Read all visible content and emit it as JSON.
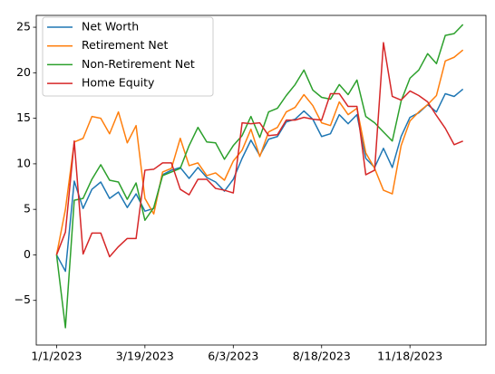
{
  "chart_data": {
    "type": "line",
    "categories": [
      "1/1/2023",
      null,
      null,
      null,
      null,
      null,
      null,
      null,
      null,
      null,
      "3/19/2023",
      null,
      null,
      null,
      null,
      null,
      null,
      null,
      null,
      null,
      "6/3/2023",
      null,
      null,
      null,
      null,
      null,
      null,
      null,
      null,
      null,
      "8/18/2023",
      null,
      null,
      null,
      null,
      null,
      null,
      null,
      null,
      null,
      "11/18/2023",
      null,
      null,
      null,
      null,
      null,
      null
    ],
    "series": [
      {
        "name": "Net Worth",
        "color": "#1f77b4",
        "values": [
          0,
          -1.8,
          8.1,
          5.1,
          7.2,
          8.0,
          6.2,
          6.9,
          5.2,
          6.7,
          4.8,
          5.1,
          8.8,
          9.3,
          9.6,
          8.4,
          9.6,
          8.5,
          8.0,
          7.0,
          8.3,
          10.6,
          12.6,
          10.9,
          12.7,
          13.0,
          14.6,
          14.9,
          15.8,
          14.9,
          13.0,
          13.3,
          15.4,
          14.4,
          15.4,
          10.6,
          9.6,
          11.7,
          9.6,
          13.0,
          15.1,
          15.6,
          16.5,
          15.7,
          17.7,
          17.4,
          18.2
        ]
      },
      {
        "name": "Retirement Net",
        "color": "#ff7f0e",
        "values": [
          0,
          5.0,
          12.4,
          12.8,
          15.2,
          15.0,
          13.3,
          15.7,
          12.3,
          14.2,
          6.2,
          4.5,
          9.1,
          9.5,
          12.8,
          9.8,
          10.1,
          8.7,
          9.0,
          8.2,
          10.3,
          11.5,
          13.8,
          10.8,
          13.5,
          14.0,
          15.7,
          16.2,
          17.6,
          16.4,
          14.5,
          14.2,
          16.8,
          15.4,
          16.1,
          11.2,
          9.5,
          7.1,
          6.7,
          12.0,
          14.7,
          15.7,
          16.5,
          17.5,
          21.3,
          21.7,
          22.5
        ]
      },
      {
        "name": "Non-Retirement Net",
        "color": "#2ca02c",
        "values": [
          0,
          -8.0,
          6.0,
          6.2,
          8.3,
          9.9,
          8.2,
          8.0,
          6.1,
          7.9,
          3.8,
          5.2,
          8.7,
          9.1,
          9.5,
          12.0,
          14.0,
          12.4,
          12.3,
          10.5,
          12.0,
          13.1,
          15.2,
          12.9,
          15.7,
          16.1,
          17.5,
          18.7,
          20.3,
          18.1,
          17.3,
          17.1,
          18.7,
          17.6,
          19.2,
          15.2,
          14.5,
          13.5,
          12.5,
          16.9,
          19.4,
          20.3,
          22.1,
          21.0,
          24.1,
          24.3,
          25.3
        ]
      },
      {
        "name": "Home Equity",
        "color": "#d62728",
        "values": [
          0,
          2.5,
          12.5,
          0.1,
          2.4,
          2.4,
          -0.2,
          0.9,
          1.8,
          1.8,
          9.3,
          9.4,
          10.1,
          10.1,
          7.2,
          6.6,
          8.3,
          8.3,
          7.3,
          7.1,
          6.8,
          14.5,
          14.4,
          14.5,
          13.1,
          13.2,
          14.8,
          14.8,
          15.1,
          14.9,
          14.8,
          17.7,
          17.7,
          16.3,
          16.3,
          8.8,
          9.3,
          23.3,
          17.4,
          17.0,
          18.0,
          17.5,
          16.8,
          15.3,
          13.9,
          12.1,
          12.5
        ]
      }
    ],
    "xlim": [
      -2.3,
      48.6
    ],
    "ylim": [
      -9.9,
      26.3
    ],
    "yticks": [
      {
        "value": -5,
        "label": "−5"
      },
      0,
      5,
      10,
      15,
      20,
      25
    ],
    "legend": "upper left",
    "grid": false
  }
}
